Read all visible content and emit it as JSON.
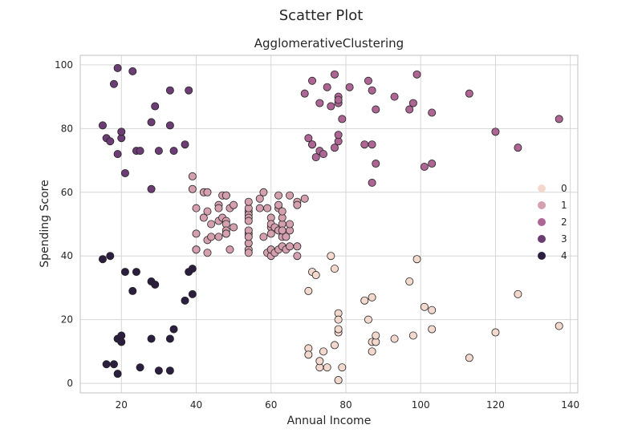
{
  "suptitle": "Scatter Plot",
  "chart_data": {
    "type": "scatter",
    "title": "AgglomerativeClustering",
    "xlabel": "Annual Income",
    "ylabel": "Spending Score",
    "xlim": [
      9,
      142
    ],
    "ylim": [
      -3,
      103
    ],
    "xticks": [
      20,
      40,
      60,
      80,
      100,
      120,
      140
    ],
    "yticks": [
      0,
      20,
      40,
      60,
      80,
      100
    ],
    "grid": true,
    "legend_position": "right",
    "series": [
      {
        "name": "0",
        "color": "#f3d9cd",
        "points": [
          [
            70,
            29
          ],
          [
            71,
            35
          ],
          [
            72,
            34
          ],
          [
            76,
            40
          ],
          [
            77,
            36
          ],
          [
            78,
            22
          ],
          [
            78,
            20
          ],
          [
            78,
            16
          ],
          [
            78,
            17
          ],
          [
            78,
            1
          ],
          [
            78,
            1
          ],
          [
            70,
            11
          ],
          [
            70,
            9
          ],
          [
            73,
            5
          ],
          [
            73,
            7
          ],
          [
            74,
            10
          ],
          [
            75,
            5
          ],
          [
            77,
            12
          ],
          [
            79,
            5
          ],
          [
            85,
            26
          ],
          [
            86,
            20
          ],
          [
            87,
            27
          ],
          [
            87,
            13
          ],
          [
            87,
            10
          ],
          [
            88,
            13
          ],
          [
            88,
            15
          ],
          [
            93,
            14
          ],
          [
            97,
            32
          ],
          [
            98,
            15
          ],
          [
            99,
            39
          ],
          [
            101,
            24
          ],
          [
            103,
            23
          ],
          [
            103,
            17
          ],
          [
            113,
            8
          ],
          [
            120,
            16
          ],
          [
            126,
            28
          ],
          [
            137,
            18
          ]
        ]
      },
      {
        "name": "1",
        "color": "#d5a0ad",
        "points": [
          [
            39,
            65
          ],
          [
            39,
            61
          ],
          [
            40,
            55
          ],
          [
            40,
            47
          ],
          [
            40,
            42
          ],
          [
            40,
            42
          ],
          [
            42,
            52
          ],
          [
            42,
            60
          ],
          [
            43,
            60
          ],
          [
            43,
            54
          ],
          [
            43,
            45
          ],
          [
            43,
            41
          ],
          [
            44,
            50
          ],
          [
            44,
            46
          ],
          [
            46,
            51
          ],
          [
            46,
            46
          ],
          [
            46,
            56
          ],
          [
            46,
            55
          ],
          [
            47,
            52
          ],
          [
            47,
            59
          ],
          [
            48,
            59
          ],
          [
            48,
            47
          ],
          [
            48,
            51
          ],
          [
            48,
            50
          ],
          [
            48,
            48
          ],
          [
            48,
            59
          ],
          [
            48,
            47
          ],
          [
            49,
            55
          ],
          [
            49,
            42
          ],
          [
            50,
            49
          ],
          [
            50,
            56
          ],
          [
            54,
            47
          ],
          [
            54,
            54
          ],
          [
            54,
            53
          ],
          [
            54,
            48
          ],
          [
            54,
            52
          ],
          [
            54,
            42
          ],
          [
            54,
            51
          ],
          [
            54,
            55
          ],
          [
            54,
            41
          ],
          [
            54,
            44
          ],
          [
            54,
            57
          ],
          [
            54,
            46
          ],
          [
            57,
            58
          ],
          [
            57,
            55
          ],
          [
            58,
            60
          ],
          [
            58,
            46
          ],
          [
            59,
            55
          ],
          [
            59,
            41
          ],
          [
            60,
            49
          ],
          [
            60,
            40
          ],
          [
            60,
            42
          ],
          [
            60,
            52
          ],
          [
            60,
            47
          ],
          [
            60,
            50
          ],
          [
            60,
            42
          ],
          [
            61,
            49
          ],
          [
            61,
            41
          ],
          [
            62,
            48
          ],
          [
            62,
            59
          ],
          [
            62,
            55
          ],
          [
            62,
            56
          ],
          [
            62,
            42
          ],
          [
            63,
            50
          ],
          [
            63,
            46
          ],
          [
            63,
            43
          ],
          [
            63,
            48
          ],
          [
            63,
            52
          ],
          [
            63,
            54
          ],
          [
            64,
            42
          ],
          [
            64,
            46
          ],
          [
            65,
            48
          ],
          [
            65,
            50
          ],
          [
            65,
            43
          ],
          [
            65,
            59
          ],
          [
            67,
            43
          ],
          [
            67,
            57
          ],
          [
            67,
            56
          ],
          [
            67,
            40
          ],
          [
            69,
            58
          ]
        ]
      },
      {
        "name": "2",
        "color": "#ad6593",
        "points": [
          [
            69,
            91
          ],
          [
            70,
            77
          ],
          [
            71,
            95
          ],
          [
            71,
            75
          ],
          [
            71,
            75
          ],
          [
            72,
            71
          ],
          [
            73,
            88
          ],
          [
            73,
            73
          ],
          [
            74,
            72
          ],
          [
            75,
            93
          ],
          [
            76,
            87
          ],
          [
            77,
            97
          ],
          [
            77,
            74
          ],
          [
            78,
            90
          ],
          [
            78,
            88
          ],
          [
            78,
            76
          ],
          [
            78,
            89
          ],
          [
            78,
            78
          ],
          [
            79,
            83
          ],
          [
            81,
            93
          ],
          [
            85,
            75
          ],
          [
            86,
            95
          ],
          [
            87,
            63
          ],
          [
            87,
            75
          ],
          [
            87,
            92
          ],
          [
            88,
            86
          ],
          [
            88,
            69
          ],
          [
            93,
            90
          ],
          [
            97,
            86
          ],
          [
            98,
            88
          ],
          [
            99,
            97
          ],
          [
            101,
            68
          ],
          [
            103,
            85
          ],
          [
            103,
            69
          ],
          [
            113,
            91
          ],
          [
            120,
            79
          ],
          [
            126,
            74
          ],
          [
            137,
            83
          ]
        ]
      },
      {
        "name": "3",
        "color": "#6c3d74",
        "points": [
          [
            15,
            81
          ],
          [
            16,
            77
          ],
          [
            17,
            76
          ],
          [
            18,
            94
          ],
          [
            19,
            72
          ],
          [
            19,
            99
          ],
          [
            20,
            77
          ],
          [
            20,
            79
          ],
          [
            21,
            66
          ],
          [
            23,
            98
          ],
          [
            24,
            73
          ],
          [
            25,
            73
          ],
          [
            28,
            82
          ],
          [
            28,
            61
          ],
          [
            29,
            87
          ],
          [
            30,
            73
          ],
          [
            33,
            92
          ],
          [
            33,
            81
          ],
          [
            34,
            73
          ],
          [
            37,
            75
          ],
          [
            38,
            92
          ]
        ]
      },
      {
        "name": "4",
        "color": "#2c1e3e",
        "points": [
          [
            15,
            39
          ],
          [
            16,
            6
          ],
          [
            17,
            40
          ],
          [
            18,
            6
          ],
          [
            19,
            3
          ],
          [
            19,
            14
          ],
          [
            20,
            15
          ],
          [
            20,
            13
          ],
          [
            21,
            35
          ],
          [
            23,
            29
          ],
          [
            24,
            35
          ],
          [
            25,
            5
          ],
          [
            28,
            14
          ],
          [
            28,
            32
          ],
          [
            29,
            31
          ],
          [
            30,
            4
          ],
          [
            33,
            4
          ],
          [
            33,
            14
          ],
          [
            34,
            17
          ],
          [
            37,
            26
          ],
          [
            38,
            35
          ],
          [
            39,
            36
          ],
          [
            39,
            28
          ]
        ]
      }
    ]
  }
}
